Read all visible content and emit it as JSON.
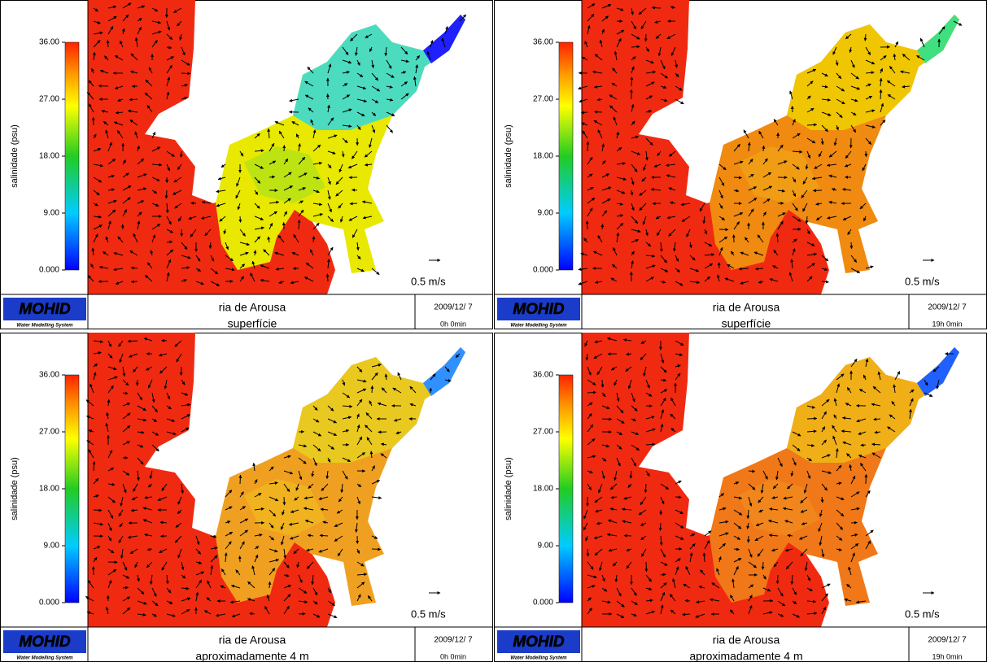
{
  "panels": [
    {
      "colorbar": {
        "label": "salinidade (psu)",
        "range": [
          0,
          36
        ],
        "ticks": [
          {
            "value": 36,
            "label": "36.00"
          },
          {
            "value": 27,
            "label": "27.00"
          },
          {
            "value": 18,
            "label": "18.00"
          },
          {
            "value": 9,
            "label": "9.00"
          },
          {
            "value": 0,
            "label": "0.000"
          }
        ]
      },
      "scale_label": "0.5 m/s",
      "logo": "MOHID",
      "logo_subtitle": "Water Modelling System",
      "title": "ria de Arousa",
      "subtitle": "superfície",
      "date": "2009/12/ 7",
      "time": "0h 0min"
    },
    {
      "colorbar": {
        "label": "salinidade (psu)",
        "range": [
          0,
          36
        ],
        "ticks": [
          {
            "value": 36,
            "label": "36.00"
          },
          {
            "value": 27,
            "label": "27.00"
          },
          {
            "value": 18,
            "label": "18.00"
          },
          {
            "value": 9,
            "label": "9.00"
          },
          {
            "value": 0,
            "label": "0.000"
          }
        ]
      },
      "scale_label": "0.5 m/s",
      "logo": "MOHID",
      "logo_subtitle": "Water Modelling System",
      "title": "ria de Arousa",
      "subtitle": "superfície",
      "date": "2009/12/ 7",
      "time": "19h 0min"
    },
    {
      "colorbar": {
        "label": "salinidade (psu)",
        "range": [
          0,
          36
        ],
        "ticks": [
          {
            "value": 36,
            "label": "36.00"
          },
          {
            "value": 27,
            "label": "27.00"
          },
          {
            "value": 18,
            "label": "18.00"
          },
          {
            "value": 9,
            "label": "9.00"
          },
          {
            "value": 0,
            "label": "0.000"
          }
        ]
      },
      "scale_label": "0.5 m/s",
      "logo": "MOHID",
      "logo_subtitle": "Water Modelling System",
      "title": "ria de Arousa",
      "subtitle": "aproximadamente 4 m",
      "date": "2009/12/ 7",
      "time": "0h 0min"
    },
    {
      "colorbar": {
        "label": "salinidade (psu)",
        "range": [
          0,
          36
        ],
        "ticks": [
          {
            "value": 36,
            "label": "36.00"
          },
          {
            "value": 27,
            "label": "27.00"
          },
          {
            "value": 18,
            "label": "18.00"
          },
          {
            "value": 9,
            "label": "9.00"
          },
          {
            "value": 0,
            "label": "0.000"
          }
        ]
      },
      "scale_label": "0.5 m/s",
      "logo": "MOHID",
      "logo_subtitle": "Water Modelling System",
      "title": "ria de Arousa",
      "subtitle": "aproximadamente 4 m",
      "date": "2009/12/ 7",
      "time": "19h 0min"
    }
  ]
}
